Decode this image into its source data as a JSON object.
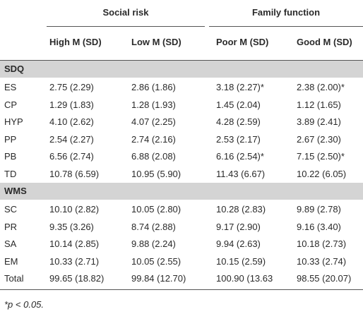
{
  "table": {
    "groups": [
      "Social risk",
      "Family function"
    ],
    "columns": [
      "High M (SD)",
      "Low M (SD)",
      "Poor M (SD)",
      "Good M (SD)"
    ],
    "sections": [
      {
        "name": "SDQ",
        "rows": [
          [
            "ES",
            "2.75 (2.29)",
            "2.86 (1.86)",
            "3.18 (2.27)*",
            "2.38 (2.00)*"
          ],
          [
            "CP",
            "1.29 (1.83)",
            "1.28 (1.93)",
            "1.45 (2.04)",
            "1.12 (1.65)"
          ],
          [
            "HYP",
            "4.10 (2.62)",
            "4.07 (2.25)",
            "4.28 (2.59)",
            "3.89 (2.41)"
          ],
          [
            "PP",
            "2.54 (2.27)",
            "2.74 (2.16)",
            "2.53 (2.17)",
            "2.67 (2.30)"
          ],
          [
            "PB",
            "6.56 (2.74)",
            "6.88 (2.08)",
            "6.16 (2.54)*",
            "7.15 (2.50)*"
          ],
          [
            "TD",
            "10.78 (6.59)",
            "10.95 (5.90)",
            "11.43 (6.67)",
            "10.22 (6.05)"
          ]
        ]
      },
      {
        "name": "WMS",
        "rows": [
          [
            "SC",
            "10.10 (2.82)",
            "10.05 (2.80)",
            "10.28 (2.83)",
            "9.89 (2.78)"
          ],
          [
            "PR",
            "9.35 (3.26)",
            "8.74 (2.88)",
            "9.17 (2.90)",
            "9.16 (3.40)"
          ],
          [
            "SA",
            "10.14 (2.85)",
            "9.88 (2.24)",
            "9.94 (2.63)",
            "10.18 (2.73)"
          ],
          [
            "EM",
            "10.33 (2.71)",
            "10.05 (2.55)",
            "10.15 (2.59)",
            "10.33 (2.74)"
          ],
          [
            "Total",
            "99.65 (18.82)",
            "99.84 (12.70)",
            "100.90 (13.63",
            "98.55 (20.07)"
          ]
        ]
      }
    ],
    "footnote": "*p < 0.05."
  }
}
